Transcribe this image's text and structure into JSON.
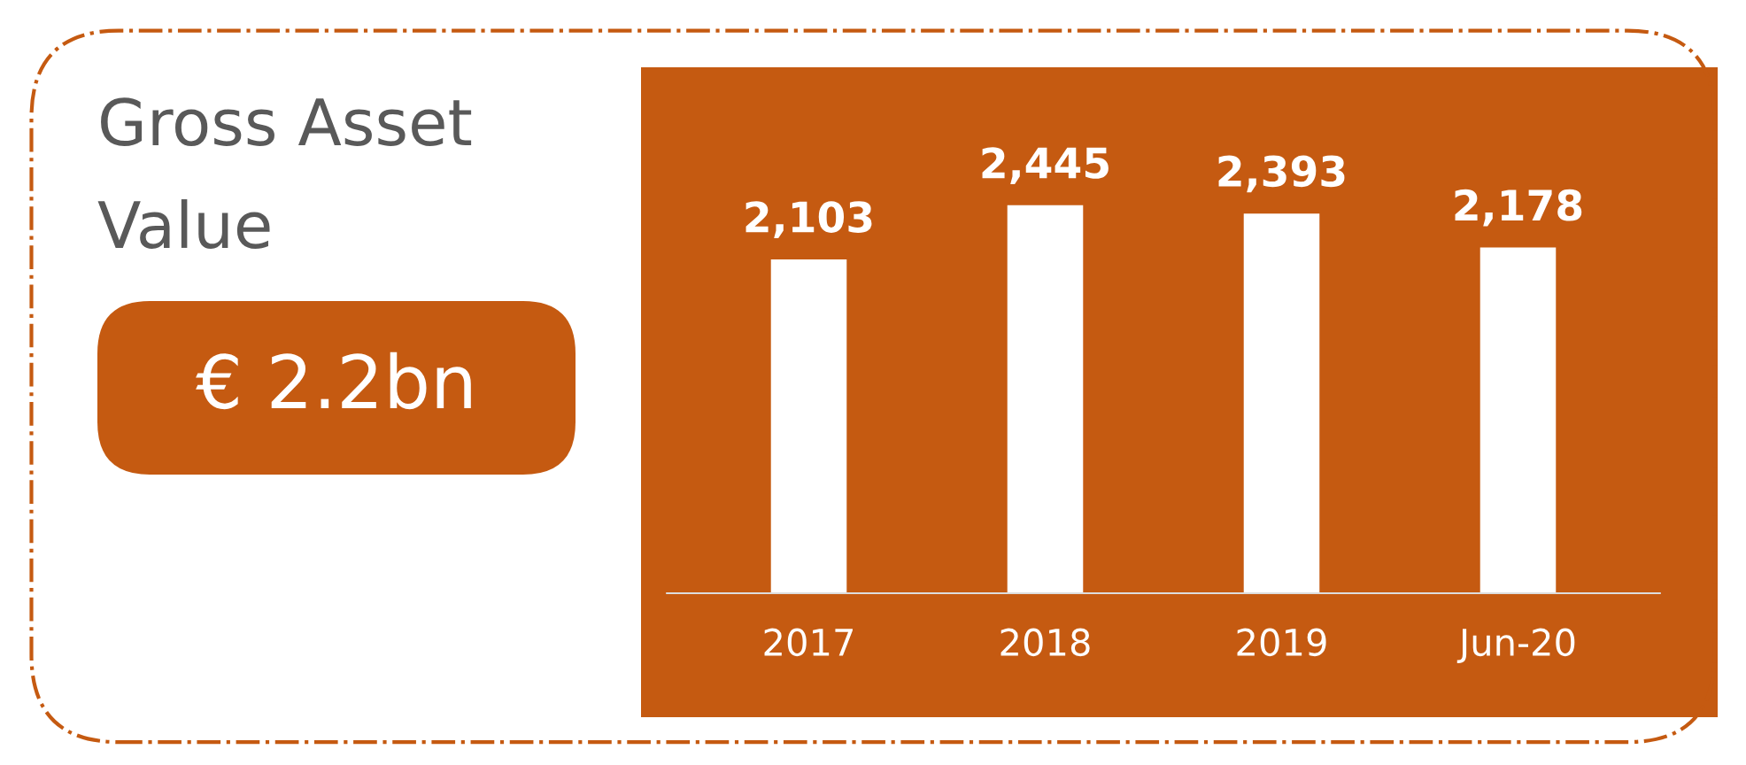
{
  "chart_data": {
    "type": "bar",
    "title": "Gross Asset Value",
    "subtitle": "€ 2.2bn",
    "categories": [
      "2017",
      "2018",
      "2019",
      "Jun-20"
    ],
    "values": [
      2103,
      2445,
      2393,
      2178
    ],
    "value_labels": [
      "2,103",
      "2,445",
      "2,393",
      "2,178"
    ],
    "color": "#ffffff",
    "grid": false,
    "legend": false,
    "tick_labels": "x"
  }
}
